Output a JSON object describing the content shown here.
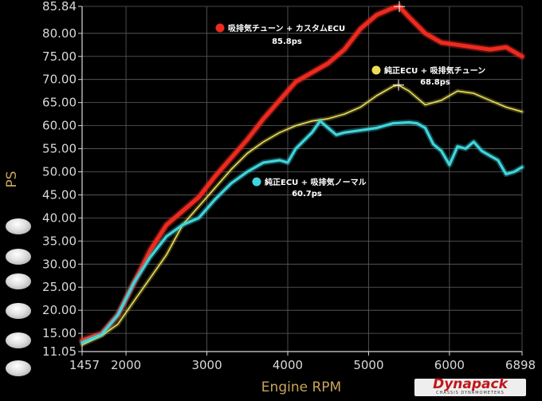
{
  "chart_data": {
    "type": "line",
    "xlabel": "Engine RPM",
    "ylabel": "PS",
    "xlim": [
      1457,
      6898
    ],
    "ylim": [
      11.05,
      85.84
    ],
    "xticks": [
      "1457",
      "2000",
      "3000",
      "4000",
      "5000",
      "6000",
      "6898"
    ],
    "yticks": [
      "85.84",
      "80.00",
      "75.00",
      "70.00",
      "65.00",
      "60.00",
      "55.00",
      "50.00",
      "45.00",
      "40.00",
      "35.00",
      "30.00",
      "25.00",
      "20.00",
      "15.00",
      "11.05"
    ],
    "grid": true,
    "series": [
      {
        "name": "吸排気チューン + カスタムECU",
        "color": "#ee2a1f",
        "peak_label": "85.8ps",
        "x": [
          1457,
          1700,
          1900,
          2100,
          2300,
          2500,
          2700,
          2900,
          3100,
          3300,
          3500,
          3700,
          3900,
          4100,
          4300,
          4500,
          4700,
          4900,
          5100,
          5300,
          5380,
          5500,
          5700,
          5900,
          6100,
          6300,
          6500,
          6700,
          6898
        ],
        "y": [
          13.5,
          15.0,
          19.0,
          26.0,
          33.0,
          38.5,
          41.5,
          44.5,
          49.0,
          53.0,
          57.0,
          61.5,
          65.5,
          69.5,
          71.5,
          73.5,
          76.5,
          81.0,
          84.0,
          85.5,
          85.8,
          83.5,
          80.0,
          78.0,
          77.5,
          77.0,
          76.5,
          77.0,
          75.0
        ]
      },
      {
        "name": "純正ECU + 吸排気チューン",
        "color": "#ecdf57",
        "peak_label": "68.8ps",
        "x": [
          1457,
          1700,
          1900,
          2100,
          2300,
          2500,
          2700,
          2900,
          3100,
          3300,
          3500,
          3700,
          3900,
          4100,
          4300,
          4500,
          4700,
          4900,
          5100,
          5300,
          5370,
          5500,
          5700,
          5900,
          6100,
          6300,
          6500,
          6700,
          6898
        ],
        "y": [
          12.5,
          14.5,
          17.0,
          22.0,
          27.0,
          32.0,
          38.5,
          42.5,
          46.5,
          50.5,
          54.0,
          56.5,
          58.5,
          60.0,
          61.0,
          61.5,
          62.5,
          64.0,
          66.5,
          68.5,
          68.8,
          67.5,
          64.5,
          65.5,
          67.5,
          67.0,
          65.5,
          64.0,
          63.0
        ]
      },
      {
        "name": "純正ECU + 吸排気ノーマル",
        "color": "#3fd6dd",
        "peak_label": "60.7ps",
        "x": [
          1457,
          1700,
          1900,
          2100,
          2300,
          2500,
          2700,
          2900,
          3100,
          3300,
          3500,
          3700,
          3900,
          4000,
          4100,
          4300,
          4400,
          4500,
          4600,
          4700,
          4900,
          5100,
          5300,
          5500,
          5600,
          5700,
          5800,
          5900,
          6000,
          6100,
          6200,
          6300,
          6400,
          6500,
          6600,
          6700,
          6800,
          6898
        ],
        "y": [
          13.0,
          14.8,
          19.0,
          26.0,
          31.5,
          36.0,
          38.5,
          40.0,
          44.0,
          47.5,
          50.0,
          52.0,
          52.5,
          52.0,
          55.0,
          58.5,
          61.0,
          59.5,
          58.0,
          58.5,
          59.0,
          59.5,
          60.5,
          60.7,
          60.5,
          59.5,
          56.0,
          54.5,
          51.5,
          55.5,
          55.0,
          56.5,
          54.5,
          53.5,
          52.5,
          49.5,
          50.0,
          51.0
        ]
      }
    ]
  }
}
